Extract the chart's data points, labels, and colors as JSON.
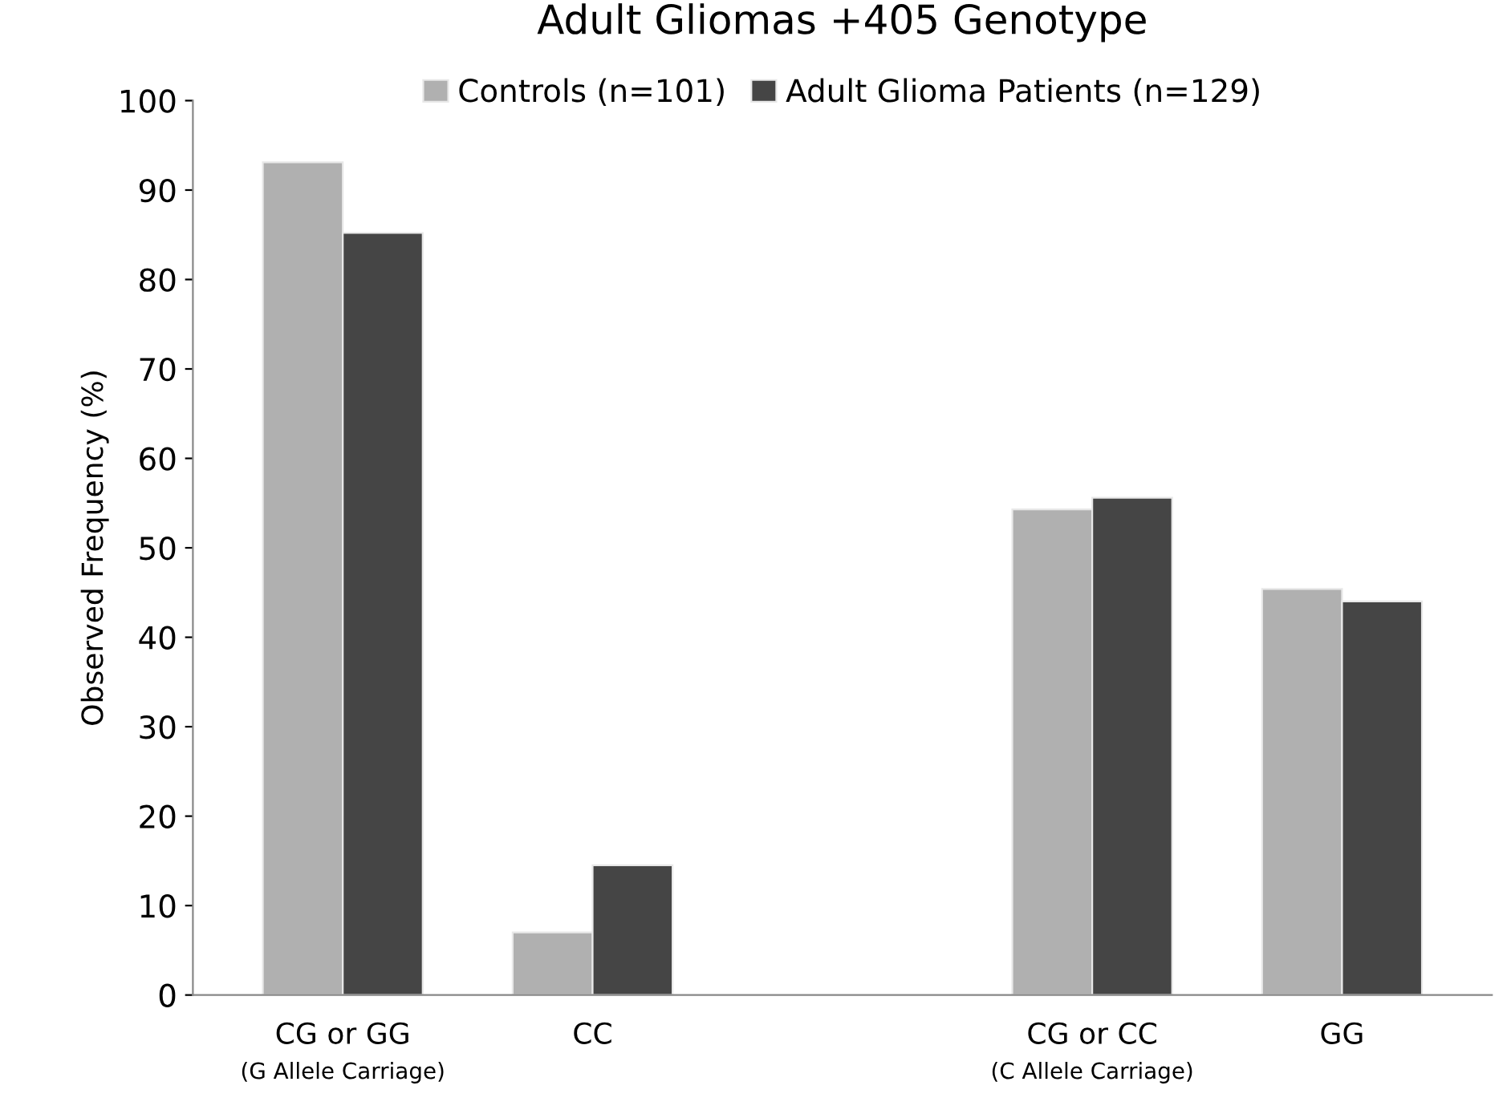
{
  "chart_data": {
    "type": "bar",
    "title": "Adult Gliomas +405 Genotype",
    "ylabel": "Observed Frequency (%)",
    "categories": [
      "CG or GG\n(G Allele Carriage)",
      "CC",
      null,
      "CG or CC\n(C Allele Carriage)",
      "GG"
    ],
    "series": [
      {
        "name": "Controls (n=101)",
        "color": "#b0b0b0",
        "values": [
          93.1,
          7.0,
          null,
          54.3,
          45.4
        ]
      },
      {
        "name": "Adult Glioma Patients (n=129)",
        "color": "#454545",
        "values": [
          85.2,
          14.5,
          null,
          55.6,
          44.0
        ]
      }
    ],
    "ylim": [
      0,
      100
    ],
    "yticks": [
      0,
      10,
      20,
      30,
      40,
      50,
      60,
      70,
      80,
      90,
      100
    ],
    "grid": false,
    "legend": "top"
  }
}
